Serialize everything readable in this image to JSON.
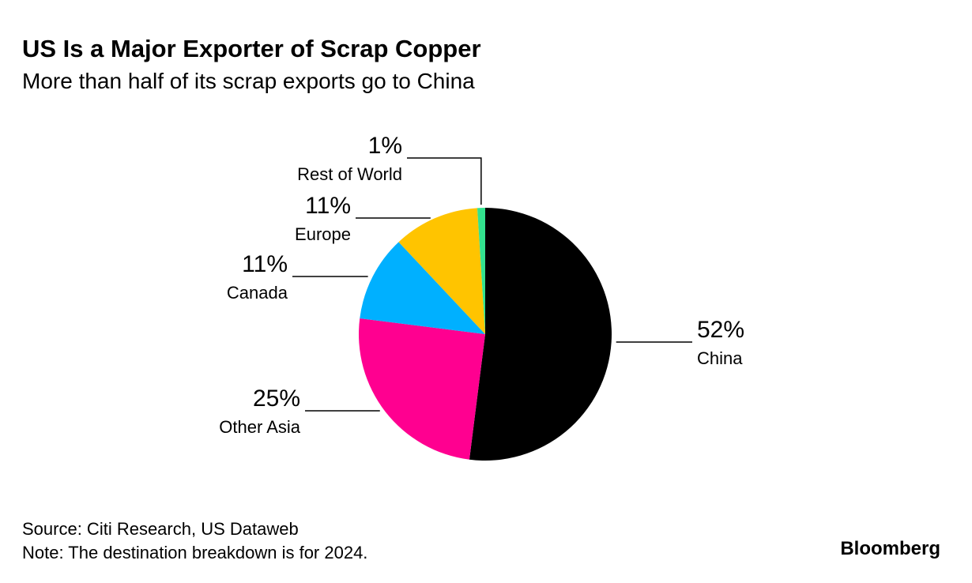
{
  "chart_data": {
    "type": "pie",
    "title": "US Is a Major Exporter of Scrap Copper",
    "subtitle": "More than half of its scrap exports go to China",
    "categories": [
      "China",
      "Other Asia",
      "Canada",
      "Europe",
      "Rest of World"
    ],
    "values": [
      52,
      25,
      11,
      11,
      1
    ],
    "value_labels": [
      "52%",
      "25%",
      "11%",
      "11%",
      "1%"
    ],
    "colors": [
      "#000000",
      "#ff0090",
      "#00b0ff",
      "#ffc400",
      "#33e38f"
    ],
    "source": "Source: Citi Research, US Dataweb",
    "note": "Note: The destination breakdown is for 2024.",
    "brand": "Bloomberg"
  }
}
